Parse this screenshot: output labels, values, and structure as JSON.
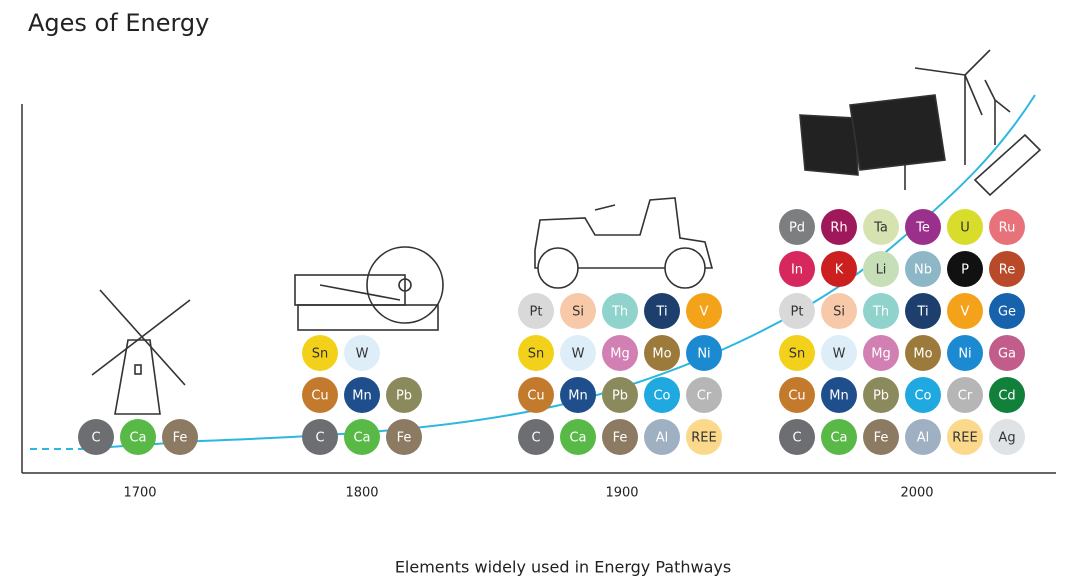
{
  "title": "Ages of Energy",
  "caption": "Elements widely used in Energy Pathways",
  "eras": [
    {
      "label": "1700",
      "rows": [
        [
          {
            "symbol": "C",
            "color": "#6d6e71"
          },
          {
            "symbol": "Ca",
            "color": "#58b947"
          },
          {
            "symbol": "Fe",
            "color": "#8c7b62"
          }
        ]
      ]
    },
    {
      "label": "1800",
      "rows": [
        [
          {
            "symbol": "Sn",
            "color": "#f3d11a"
          },
          {
            "symbol": "W",
            "color": "#ddeef9"
          }
        ],
        [
          {
            "symbol": "Cu",
            "color": "#c37a2c"
          },
          {
            "symbol": "Mn",
            "color": "#1f4e8c"
          },
          {
            "symbol": "Pb",
            "color": "#8a8a5c"
          }
        ],
        [
          {
            "symbol": "C",
            "color": "#6d6e71"
          },
          {
            "symbol": "Ca",
            "color": "#58b947"
          },
          {
            "symbol": "Fe",
            "color": "#8c7b62"
          }
        ]
      ]
    },
    {
      "label": "1900",
      "rows": [
        [
          {
            "symbol": "Pt",
            "color": "#d9d9d9"
          },
          {
            "symbol": "Si",
            "color": "#f7c9a9"
          },
          {
            "symbol": "Th",
            "color": "#8fd3cc"
          },
          {
            "symbol": "Ti",
            "color": "#1d3f6e"
          },
          {
            "symbol": "V",
            "color": "#f5a21b"
          }
        ],
        [
          {
            "symbol": "Sn",
            "color": "#f3d11a"
          },
          {
            "symbol": "W",
            "color": "#ddeef9"
          },
          {
            "symbol": "Mg",
            "color": "#d27fb3"
          },
          {
            "symbol": "Mo",
            "color": "#9c7a3c"
          },
          {
            "symbol": "Ni",
            "color": "#1b8ad1"
          }
        ],
        [
          {
            "symbol": "Cu",
            "color": "#c37a2c"
          },
          {
            "symbol": "Mn",
            "color": "#1f4e8c"
          },
          {
            "symbol": "Pb",
            "color": "#8a8a5c"
          },
          {
            "symbol": "Co",
            "color": "#20a8e0"
          },
          {
            "symbol": "Cr",
            "color": "#b6b6b6"
          }
        ],
        [
          {
            "symbol": "C",
            "color": "#6d6e71"
          },
          {
            "symbol": "Ca",
            "color": "#58b947"
          },
          {
            "symbol": "Fe",
            "color": "#8c7b62"
          },
          {
            "symbol": "Al",
            "color": "#9fb0c2"
          },
          {
            "symbol": "REE",
            "color": "#fbd88a"
          }
        ]
      ]
    },
    {
      "label": "2000",
      "rows": [
        [
          {
            "symbol": "Pd",
            "color": "#7d7e80"
          },
          {
            "symbol": "Rh",
            "color": "#a0185c"
          },
          {
            "symbol": "Ta",
            "color": "#d6e3b0"
          },
          {
            "symbol": "Te",
            "color": "#9b2f8c"
          },
          {
            "symbol": "U",
            "color": "#d7dd2a"
          },
          {
            "symbol": "Ru",
            "color": "#e8727a"
          }
        ],
        [
          {
            "symbol": "In",
            "color": "#d7285e"
          },
          {
            "symbol": "K",
            "color": "#cc1f1f"
          },
          {
            "symbol": "Li",
            "color": "#c6dfb8"
          },
          {
            "symbol": "Nb",
            "color": "#8db7c6"
          },
          {
            "symbol": "P",
            "color": "#111111"
          },
          {
            "symbol": "Re",
            "color": "#b84a2a"
          }
        ],
        [
          {
            "symbol": "Pt",
            "color": "#d9d9d9"
          },
          {
            "symbol": "Si",
            "color": "#f7c9a9"
          },
          {
            "symbol": "Th",
            "color": "#8fd3cc"
          },
          {
            "symbol": "Ti",
            "color": "#1d3f6e"
          },
          {
            "symbol": "V",
            "color": "#f5a21b"
          },
          {
            "symbol": "Ge",
            "color": "#1662ad"
          }
        ],
        [
          {
            "symbol": "Sn",
            "color": "#f3d11a"
          },
          {
            "symbol": "W",
            "color": "#ddeef9"
          },
          {
            "symbol": "Mg",
            "color": "#d27fb3"
          },
          {
            "symbol": "Mo",
            "color": "#9c7a3c"
          },
          {
            "symbol": "Ni",
            "color": "#1b8ad1"
          },
          {
            "symbol": "Ga",
            "color": "#c25c8b"
          }
        ],
        [
          {
            "symbol": "Cu",
            "color": "#c37a2c"
          },
          {
            "symbol": "Mn",
            "color": "#1f4e8c"
          },
          {
            "symbol": "Pb",
            "color": "#8a8a5c"
          },
          {
            "symbol": "Co",
            "color": "#20a8e0"
          },
          {
            "symbol": "Cr",
            "color": "#b6b6b6"
          },
          {
            "symbol": "Cd",
            "color": "#11803b"
          }
        ],
        [
          {
            "symbol": "C",
            "color": "#6d6e71"
          },
          {
            "symbol": "Ca",
            "color": "#58b947"
          },
          {
            "symbol": "Fe",
            "color": "#8c7b62"
          },
          {
            "symbol": "Al",
            "color": "#9fb0c2"
          },
          {
            "symbol": "REE",
            "color": "#fbd88a"
          },
          {
            "symbol": "Ag",
            "color": "#dfe3e6"
          }
        ]
      ]
    }
  ]
}
